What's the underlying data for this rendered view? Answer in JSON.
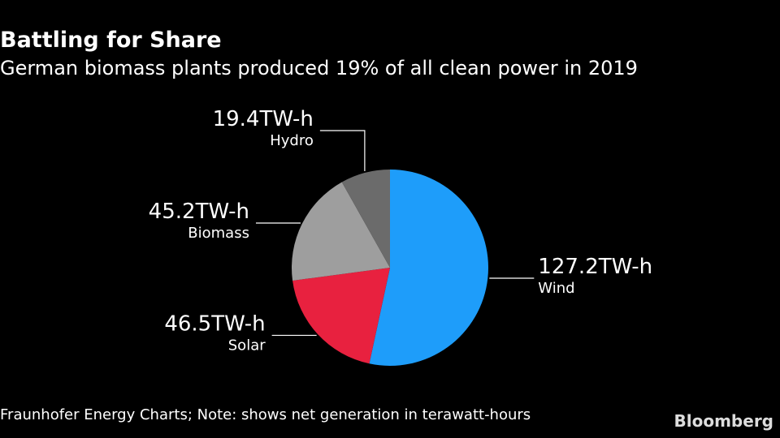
{
  "chart_data": {
    "type": "pie",
    "title": "Battling for Share",
    "subtitle": "German biomass plants produced 19% of all clean power in 2019",
    "categories": [
      "Wind",
      "Solar",
      "Biomass",
      "Hydro"
    ],
    "values": [
      127.2,
      46.5,
      45.2,
      19.4
    ],
    "value_labels": [
      "127.2TW-h",
      "46.5TW-h",
      "45.2TW-h",
      "19.4TW-h"
    ],
    "colors": [
      "#1e9dfa",
      "#e8213f",
      "#9e9e9e",
      "#6b6b6b"
    ],
    "source": "Fraunhofer Energy Charts; Note: shows net generation in terawatt-hours",
    "logo": "Bloomberg"
  }
}
